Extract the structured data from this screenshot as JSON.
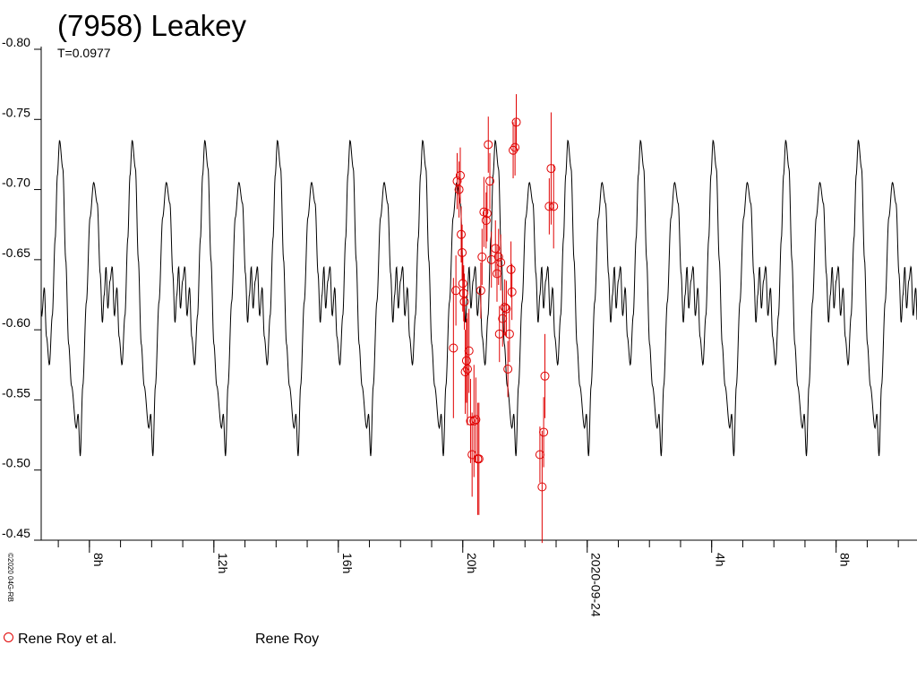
{
  "chart_data": {
    "type": "line",
    "title": "(7958) Leakey",
    "subtitle": "T=0.0977",
    "copyright": "©2020 04G-RB",
    "y_axis": {
      "reversed": true,
      "ylim": [
        -0.45,
        -0.8
      ],
      "ticks": [
        -0.8,
        -0.75,
        -0.7,
        -0.65,
        -0.6,
        -0.55,
        -0.5,
        -0.45
      ],
      "tick_labels": [
        "-0.80",
        "-0.75",
        "-0.70",
        "-0.65",
        "-0.60",
        "-0.55",
        "-0.50",
        "-0.45"
      ]
    },
    "x_axis": {
      "unit": "hours from 2020-09-23 00:00 UT",
      "xlim": [
        6.45,
        34.6
      ],
      "ticks": [
        8,
        12,
        16,
        20,
        24,
        28,
        32
      ],
      "tick_labels": [
        "8h",
        "12h",
        "16h",
        "20h",
        "2020-09-24",
        "4h",
        "8h"
      ],
      "minor_tick_step": 1
    },
    "model_curve": {
      "color": "#000000",
      "period_hours": 2.334,
      "phase_origin_hours": 7.04,
      "shape": [
        [
          0.0,
          -0.735
        ],
        [
          0.045,
          -0.715
        ],
        [
          0.085,
          -0.65
        ],
        [
          0.125,
          -0.59
        ],
        [
          0.165,
          -0.56
        ],
        [
          0.23,
          -0.53
        ],
        [
          0.255,
          -0.54
        ],
        [
          0.285,
          -0.51
        ],
        [
          0.32,
          -0.56
        ],
        [
          0.37,
          -0.62
        ],
        [
          0.42,
          -0.68
        ],
        [
          0.47,
          -0.705
        ],
        [
          0.52,
          -0.69
        ],
        [
          0.56,
          -0.64
        ],
        [
          0.59,
          -0.605
        ],
        [
          0.615,
          -0.625
        ],
        [
          0.64,
          -0.645
        ],
        [
          0.665,
          -0.615
        ],
        [
          0.695,
          -0.635
        ],
        [
          0.725,
          -0.645
        ],
        [
          0.755,
          -0.61
        ],
        [
          0.79,
          -0.63
        ],
        [
          0.82,
          -0.595
        ],
        [
          0.86,
          -0.575
        ],
        [
          0.9,
          -0.61
        ],
        [
          0.94,
          -0.665
        ],
        [
          0.97,
          -0.71
        ],
        [
          1.0,
          -0.735
        ]
      ]
    },
    "observations": {
      "color": "#e00000",
      "series_name": "Rene Roy et al.",
      "points": [
        [
          19.7,
          -0.587,
          0.05
        ],
        [
          19.78,
          -0.628,
          0.025
        ],
        [
          19.82,
          -0.706,
          0.02
        ],
        [
          19.88,
          -0.7,
          0.02
        ],
        [
          19.92,
          -0.71,
          0.02
        ],
        [
          19.95,
          -0.668,
          0.02
        ],
        [
          19.98,
          -0.655,
          0.02
        ],
        [
          20.0,
          -0.633,
          0.02
        ],
        [
          20.03,
          -0.626,
          0.02
        ],
        [
          20.05,
          -0.62,
          0.02
        ],
        [
          20.08,
          -0.57,
          0.03
        ],
        [
          20.12,
          -0.578,
          0.03
        ],
        [
          20.15,
          -0.572,
          0.04
        ],
        [
          20.2,
          -0.585,
          0.03
        ],
        [
          20.25,
          -0.535,
          0.03
        ],
        [
          20.3,
          -0.511,
          0.03
        ],
        [
          20.36,
          -0.535,
          0.04
        ],
        [
          20.42,
          -0.536,
          0.03
        ],
        [
          20.48,
          -0.508,
          0.04
        ],
        [
          20.52,
          -0.508,
          0.04
        ],
        [
          20.58,
          -0.628,
          0.02
        ],
        [
          20.62,
          -0.652,
          0.02
        ],
        [
          20.68,
          -0.684,
          0.025
        ],
        [
          20.75,
          -0.678,
          0.02
        ],
        [
          20.78,
          -0.683,
          0.02
        ],
        [
          20.82,
          -0.732,
          0.02
        ],
        [
          20.87,
          -0.706,
          0.02
        ],
        [
          20.92,
          -0.65,
          0.02
        ],
        [
          21.05,
          -0.658,
          0.02
        ],
        [
          21.1,
          -0.64,
          0.02
        ],
        [
          21.15,
          -0.652,
          0.02
        ],
        [
          21.18,
          -0.597,
          0.02
        ],
        [
          21.22,
          -0.648,
          0.02
        ],
        [
          21.28,
          -0.608,
          0.02
        ],
        [
          21.35,
          -0.616,
          0.02
        ],
        [
          21.4,
          -0.615,
          0.02
        ],
        [
          21.45,
          -0.572,
          0.02
        ],
        [
          21.5,
          -0.597,
          0.02
        ],
        [
          21.55,
          -0.643,
          0.02
        ],
        [
          21.58,
          -0.627,
          0.02
        ],
        [
          21.62,
          -0.728,
          0.02
        ],
        [
          21.68,
          -0.73,
          0.02
        ],
        [
          21.72,
          -0.748,
          0.02
        ],
        [
          22.48,
          -0.511,
          0.02
        ],
        [
          22.55,
          -0.488,
          0.04
        ],
        [
          22.6,
          -0.527,
          0.025
        ],
        [
          22.64,
          -0.567,
          0.03
        ],
        [
          22.78,
          -0.688,
          0.02
        ],
        [
          22.84,
          -0.715,
          0.04
        ],
        [
          22.92,
          -0.688,
          0.03
        ]
      ]
    },
    "legend": [
      {
        "label": "Rene Roy et al.",
        "marker": "circle",
        "color": "#e00000"
      },
      {
        "label": "Rene Roy",
        "marker": "none",
        "color": "#000000"
      }
    ]
  }
}
